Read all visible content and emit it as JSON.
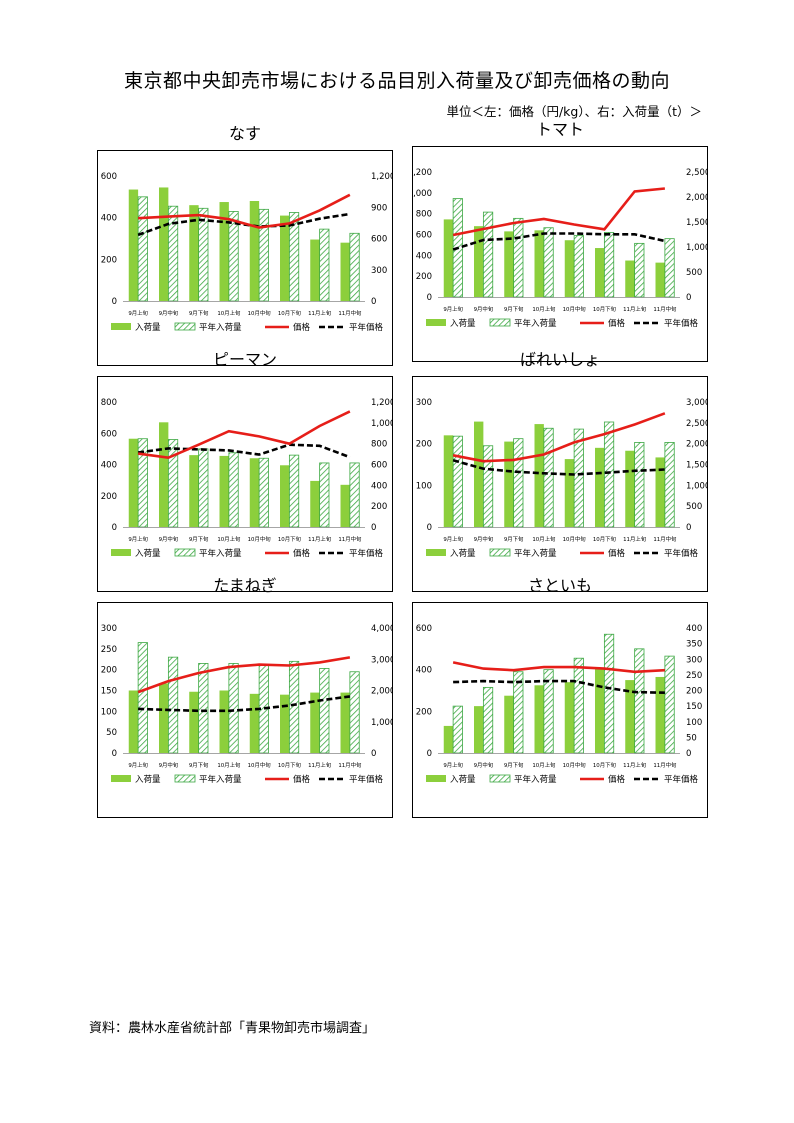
{
  "title": "東京都中央卸売市場における品目別入荷量及び卸売価格の動向",
  "unit_note": "単位＜左：価格（円/kg）、右：入荷量（t）＞",
  "source": "資料：農林水産省統計部「青果物卸売市場調査」",
  "colors": {
    "volume": "#8ccf3c",
    "normal_volume": "#3da843",
    "price": "#e61e19",
    "normal_price": "#000000"
  },
  "legend": {
    "volume": "入荷量",
    "normal_volume": "平年入荷量",
    "price": "価格",
    "normal_price": "平年価格"
  },
  "chart_data": [
    {
      "type": "bar",
      "title": "なす",
      "categories": [
        "9月上旬",
        "9月中旬",
        "9月下旬",
        "10月上旬",
        "10月中旬",
        "10月下旬",
        "11月上旬",
        "11月中旬"
      ],
      "left_axis": {
        "min": 0,
        "max": 600,
        "ticks": [
          "0",
          "200",
          "400",
          "600"
        ]
      },
      "right_axis": {
        "min": 0,
        "max": 1200,
        "ticks": [
          "0",
          "300",
          "600",
          "900",
          "1,200"
        ]
      },
      "series": [
        {
          "name": "入荷量",
          "type": "bar",
          "axis": "left",
          "values": [
            535,
            545,
            460,
            475,
            480,
            410,
            295,
            280
          ]
        },
        {
          "name": "平年入荷量",
          "type": "bar-hatched",
          "axis": "left",
          "values": [
            500,
            455,
            445,
            430,
            440,
            425,
            345,
            325
          ]
        },
        {
          "name": "価格",
          "type": "line",
          "axis": "right",
          "values": [
            795,
            810,
            825,
            785,
            705,
            745,
            870,
            1020
          ]
        },
        {
          "name": "平年価格",
          "type": "dashed-line",
          "axis": "right",
          "values": [
            635,
            740,
            780,
            755,
            715,
            725,
            790,
            835
          ]
        }
      ]
    },
    {
      "type": "bar",
      "title": "トマト",
      "categories": [
        "9月上旬",
        "9月中旬",
        "9月下旬",
        "10月上旬",
        "10月中旬",
        "10月下旬",
        "11月上旬",
        "11月中旬"
      ],
      "left_axis": {
        "min": 0,
        "max": 1200,
        "ticks": [
          "0",
          "200",
          "400",
          "600",
          "800",
          "1,000",
          "1,200"
        ]
      },
      "right_axis": {
        "min": 0,
        "max": 2500,
        "ticks": [
          "0",
          "500",
          "1,000",
          "1,500",
          "2,000",
          "2,500"
        ]
      },
      "series": [
        {
          "name": "入荷量",
          "type": "bar",
          "axis": "left",
          "values": [
            745,
            680,
            630,
            640,
            545,
            470,
            350,
            330
          ]
        },
        {
          "name": "平年入荷量",
          "type": "bar-hatched",
          "axis": "left",
          "values": [
            945,
            815,
            755,
            665,
            590,
            620,
            515,
            560
          ]
        },
        {
          "name": "価格",
          "type": "line",
          "axis": "right",
          "values": [
            1240,
            1360,
            1480,
            1560,
            1450,
            1355,
            2110,
            2170
          ]
        },
        {
          "name": "平年価格",
          "type": "dashed-line",
          "axis": "right",
          "values": [
            950,
            1140,
            1170,
            1270,
            1270,
            1255,
            1255,
            1120
          ]
        }
      ]
    },
    {
      "type": "bar",
      "title": "ピーマン",
      "categories": [
        "9月上旬",
        "9月中旬",
        "9月下旬",
        "10月上旬",
        "10月中旬",
        "10月下旬",
        "11月上旬",
        "11月中旬"
      ],
      "left_axis": {
        "min": 0,
        "max": 800,
        "ticks": [
          "0",
          "200",
          "400",
          "600",
          "800"
        ]
      },
      "right_axis": {
        "min": 0,
        "max": 1200,
        "ticks": [
          "0",
          "200",
          "400",
          "600",
          "800",
          "1,000",
          "1,200"
        ]
      },
      "series": [
        {
          "name": "入荷量",
          "type": "bar",
          "axis": "left",
          "values": [
            565,
            670,
            460,
            455,
            440,
            395,
            295,
            270
          ]
        },
        {
          "name": "平年入荷量",
          "type": "bar-hatched",
          "axis": "left",
          "values": [
            565,
            560,
            500,
            475,
            440,
            460,
            410,
            410
          ]
        },
        {
          "name": "価格",
          "type": "line",
          "axis": "right",
          "values": [
            705,
            665,
            790,
            920,
            870,
            800,
            970,
            1110
          ]
        },
        {
          "name": "平年価格",
          "type": "dashed-line",
          "axis": "right",
          "values": [
            715,
            755,
            745,
            735,
            695,
            790,
            780,
            670
          ]
        }
      ]
    },
    {
      "type": "bar",
      "title": "ばれいしょ",
      "categories": [
        "9月上旬",
        "9月中旬",
        "9月下旬",
        "10月上旬",
        "10月中旬",
        "10月下旬",
        "11月上旬",
        "11月中旬"
      ],
      "left_axis": {
        "min": 0,
        "max": 300,
        "ticks": [
          "0",
          "100",
          "200",
          "300"
        ]
      },
      "right_axis": {
        "min": 0,
        "max": 3000,
        "ticks": [
          "0",
          "500",
          "1,000",
          "1,500",
          "2,000",
          "2,500",
          "3,000"
        ]
      },
      "series": [
        {
          "name": "入荷量",
          "type": "bar",
          "axis": "left",
          "values": [
            220,
            253,
            205,
            247,
            163,
            190,
            183,
            167
          ]
        },
        {
          "name": "平年入荷量",
          "type": "bar-hatched",
          "axis": "left",
          "values": [
            218,
            195,
            212,
            237,
            235,
            252,
            203,
            203
          ]
        },
        {
          "name": "価格",
          "type": "line",
          "axis": "right",
          "values": [
            1720,
            1580,
            1610,
            1740,
            2030,
            2230,
            2460,
            2730
          ]
        },
        {
          "name": "平年価格",
          "type": "dashed-line",
          "axis": "right",
          "values": [
            1600,
            1400,
            1330,
            1290,
            1260,
            1300,
            1350,
            1380
          ]
        }
      ]
    },
    {
      "type": "bar",
      "title": "たまねぎ",
      "categories": [
        "9月上旬",
        "9月中旬",
        "9月下旬",
        "10月上旬",
        "10月中旬",
        "10月下旬",
        "11月上旬",
        "11月中旬"
      ],
      "left_axis": {
        "min": 0,
        "max": 300,
        "ticks": [
          "0",
          "50",
          "100",
          "150",
          "200",
          "250",
          "300"
        ]
      },
      "right_axis": {
        "min": 0,
        "max": 4000,
        "ticks": [
          "0",
          "1,000",
          "2,000",
          "3,000",
          "4,000"
        ]
      },
      "series": [
        {
          "name": "入荷量",
          "type": "bar",
          "axis": "left",
          "values": [
            150,
            167,
            147,
            150,
            142,
            140,
            145,
            145
          ]
        },
        {
          "name": "平年入荷量",
          "type": "bar-hatched",
          "axis": "left",
          "values": [
            265,
            230,
            215,
            215,
            212,
            220,
            203,
            195
          ]
        },
        {
          "name": "価格",
          "type": "line",
          "axis": "right",
          "values": [
            1950,
            2300,
            2560,
            2750,
            2830,
            2800,
            2900,
            3060
          ]
        },
        {
          "name": "平年価格",
          "type": "dashed-line",
          "axis": "right",
          "values": [
            1410,
            1380,
            1350,
            1350,
            1410,
            1520,
            1680,
            1810
          ]
        }
      ]
    },
    {
      "type": "bar",
      "title": "さといも",
      "categories": [
        "9月上旬",
        "9月中旬",
        "9月下旬",
        "10月上旬",
        "10月中旬",
        "10月下旬",
        "11月上旬",
        "11月中旬"
      ],
      "left_axis": {
        "min": 0,
        "max": 600,
        "ticks": [
          "0",
          "200",
          "400",
          "600"
        ]
      },
      "right_axis": {
        "min": 0,
        "max": 400,
        "ticks": [
          "0",
          "50",
          "100",
          "150",
          "200",
          "250",
          "300",
          "350",
          "400"
        ]
      },
      "series": [
        {
          "name": "入荷量",
          "type": "bar",
          "axis": "left",
          "values": [
            130,
            225,
            275,
            325,
            340,
            405,
            350,
            365
          ]
        },
        {
          "name": "平年入荷量",
          "type": "bar-hatched",
          "axis": "left",
          "values": [
            225,
            315,
            390,
            400,
            455,
            570,
            500,
            465
          ]
        },
        {
          "name": "価格",
          "type": "line",
          "axis": "right",
          "values": [
            290,
            270,
            265,
            275,
            275,
            270,
            260,
            265
          ]
        },
        {
          "name": "平年価格",
          "type": "dashed-line",
          "axis": "right",
          "values": [
            227,
            230,
            227,
            230,
            230,
            210,
            195,
            193
          ]
        }
      ]
    }
  ]
}
